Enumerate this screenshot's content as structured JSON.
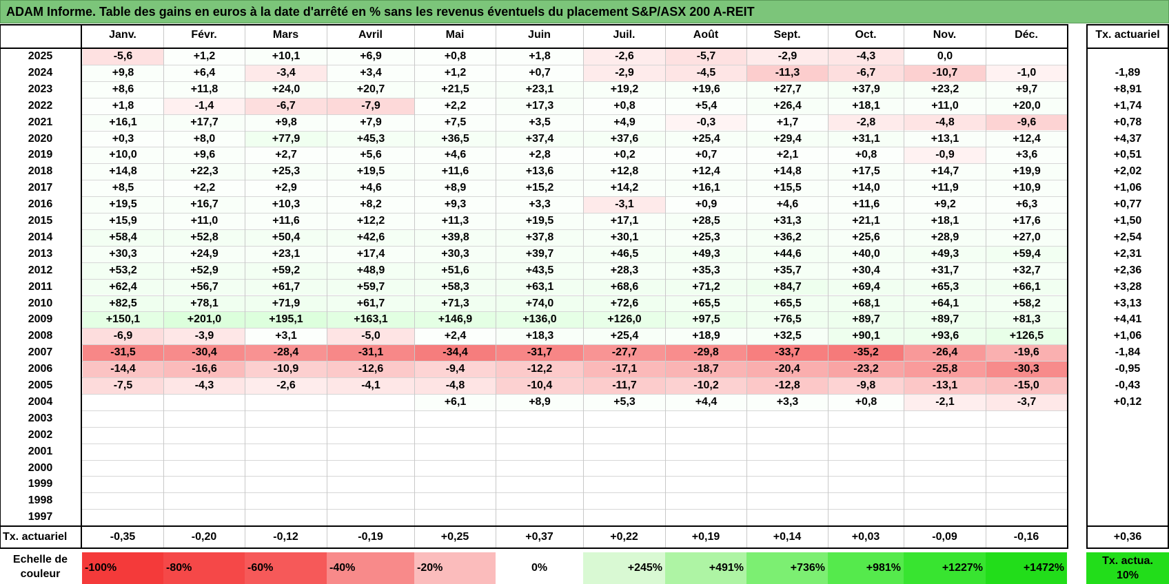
{
  "title": "ADAM Informe. Table des gains en euros à la date d'arrêté en % sans les revenus éventuels du placement S&P/ASX 200 A-REIT",
  "months": [
    "Janv.",
    "Févr.",
    "Mars",
    "Avril",
    "Mai",
    "Juin",
    "Juil.",
    "Août",
    "Sept.",
    "Oct.",
    "Nov.",
    "Déc."
  ],
  "annual_header": "Tx. actuariel",
  "rows": [
    {
      "year": "2025",
      "values": [
        "-5,6",
        "+1,2",
        "+10,1",
        "+6,9",
        "+0,8",
        "+1,8",
        "-2,6",
        "-5,7",
        "-2,9",
        "-4,3",
        "0,0",
        ""
      ],
      "annual": ""
    },
    {
      "year": "2024",
      "values": [
        "+9,8",
        "+6,4",
        "-3,4",
        "+3,4",
        "+1,2",
        "+0,7",
        "-2,9",
        "-4,5",
        "-11,3",
        "-6,7",
        "-10,7",
        "-1,0"
      ],
      "annual": "-1,89"
    },
    {
      "year": "2023",
      "values": [
        "+8,6",
        "+11,8",
        "+24,0",
        "+20,7",
        "+21,5",
        "+23,1",
        "+19,2",
        "+19,6",
        "+27,7",
        "+37,9",
        "+23,2",
        "+9,7"
      ],
      "annual": "+8,91"
    },
    {
      "year": "2022",
      "values": [
        "+1,8",
        "-1,4",
        "-6,7",
        "-7,9",
        "+2,2",
        "+17,3",
        "+0,8",
        "+5,4",
        "+26,4",
        "+18,1",
        "+11,0",
        "+20,0"
      ],
      "annual": "+1,74"
    },
    {
      "year": "2021",
      "values": [
        "+16,1",
        "+17,7",
        "+9,8",
        "+7,9",
        "+7,5",
        "+3,5",
        "+4,9",
        "-0,3",
        "+1,7",
        "-2,8",
        "-4,8",
        "-9,6"
      ],
      "annual": "+0,78"
    },
    {
      "year": "2020",
      "values": [
        "+0,3",
        "+8,0",
        "+77,9",
        "+45,3",
        "+36,5",
        "+37,4",
        "+37,6",
        "+25,4",
        "+29,4",
        "+31,1",
        "+13,1",
        "+12,4"
      ],
      "annual": "+4,37"
    },
    {
      "year": "2019",
      "values": [
        "+10,0",
        "+9,6",
        "+2,7",
        "+5,6",
        "+4,6",
        "+2,8",
        "+0,2",
        "+0,7",
        "+2,1",
        "+0,8",
        "-0,9",
        "+3,6"
      ],
      "annual": "+0,51"
    },
    {
      "year": "2018",
      "values": [
        "+14,8",
        "+22,3",
        "+25,3",
        "+19,5",
        "+11,6",
        "+13,6",
        "+12,8",
        "+12,4",
        "+14,8",
        "+17,5",
        "+14,7",
        "+19,9"
      ],
      "annual": "+2,02"
    },
    {
      "year": "2017",
      "values": [
        "+8,5",
        "+2,2",
        "+2,9",
        "+4,6",
        "+8,9",
        "+15,2",
        "+14,2",
        "+16,1",
        "+15,5",
        "+14,0",
        "+11,9",
        "+10,9"
      ],
      "annual": "+1,06"
    },
    {
      "year": "2016",
      "values": [
        "+19,5",
        "+16,7",
        "+10,3",
        "+8,2",
        "+9,3",
        "+3,3",
        "-3,1",
        "+0,9",
        "+4,6",
        "+11,6",
        "+9,2",
        "+6,3"
      ],
      "annual": "+0,77"
    },
    {
      "year": "2015",
      "values": [
        "+15,9",
        "+11,0",
        "+11,6",
        "+12,2",
        "+11,3",
        "+19,5",
        "+17,1",
        "+28,5",
        "+31,3",
        "+21,1",
        "+18,1",
        "+17,6"
      ],
      "annual": "+1,50"
    },
    {
      "year": "2014",
      "values": [
        "+58,4",
        "+52,8",
        "+50,4",
        "+42,6",
        "+39,8",
        "+37,8",
        "+30,1",
        "+25,3",
        "+36,2",
        "+25,6",
        "+28,9",
        "+27,0"
      ],
      "annual": "+2,54"
    },
    {
      "year": "2013",
      "values": [
        "+30,3",
        "+24,9",
        "+23,1",
        "+17,4",
        "+30,3",
        "+39,7",
        "+46,5",
        "+49,3",
        "+44,6",
        "+40,0",
        "+49,3",
        "+59,4"
      ],
      "annual": "+2,31"
    },
    {
      "year": "2012",
      "values": [
        "+53,2",
        "+52,9",
        "+59,2",
        "+48,9",
        "+51,6",
        "+43,5",
        "+28,3",
        "+35,3",
        "+35,7",
        "+30,4",
        "+31,7",
        "+32,7"
      ],
      "annual": "+2,36"
    },
    {
      "year": "2011",
      "values": [
        "+62,4",
        "+56,7",
        "+61,7",
        "+59,7",
        "+58,3",
        "+63,1",
        "+68,6",
        "+71,2",
        "+84,7",
        "+69,4",
        "+65,3",
        "+66,1"
      ],
      "annual": "+3,28"
    },
    {
      "year": "2010",
      "values": [
        "+82,5",
        "+78,1",
        "+71,9",
        "+61,7",
        "+71,3",
        "+74,0",
        "+72,6",
        "+65,5",
        "+65,5",
        "+68,1",
        "+64,1",
        "+58,2"
      ],
      "annual": "+3,13"
    },
    {
      "year": "2009",
      "values": [
        "+150,1",
        "+201,0",
        "+195,1",
        "+163,1",
        "+146,9",
        "+136,0",
        "+126,0",
        "+97,5",
        "+76,5",
        "+89,7",
        "+89,7",
        "+81,3"
      ],
      "annual": "+4,41"
    },
    {
      "year": "2008",
      "values": [
        "-6,9",
        "-3,9",
        "+3,1",
        "-5,0",
        "+2,4",
        "+18,3",
        "+25,4",
        "+18,9",
        "+32,5",
        "+90,1",
        "+93,6",
        "+126,5"
      ],
      "annual": "+1,06"
    },
    {
      "year": "2007",
      "values": [
        "-31,5",
        "-30,4",
        "-28,4",
        "-31,1",
        "-34,4",
        "-31,7",
        "-27,7",
        "-29,8",
        "-33,7",
        "-35,2",
        "-26,4",
        "-19,6"
      ],
      "annual": "-1,84"
    },
    {
      "year": "2006",
      "values": [
        "-14,4",
        "-16,6",
        "-10,9",
        "-12,6",
        "-9,4",
        "-12,2",
        "-17,1",
        "-18,7",
        "-20,4",
        "-23,2",
        "-25,8",
        "-30,3"
      ],
      "annual": "-0,95"
    },
    {
      "year": "2005",
      "values": [
        "-7,5",
        "-4,3",
        "-2,6",
        "-4,1",
        "-4,8",
        "-10,4",
        "-11,7",
        "-10,2",
        "-12,8",
        "-9,8",
        "-13,1",
        "-15,0"
      ],
      "annual": "-0,43"
    },
    {
      "year": "2004",
      "values": [
        "",
        "",
        "",
        "",
        "+6,1",
        "+8,9",
        "+5,3",
        "+4,4",
        "+3,3",
        "+0,8",
        "-2,1",
        "-3,7"
      ],
      "annual": "+0,12"
    },
    {
      "year": "2003",
      "values": [
        "",
        "",
        "",
        "",
        "",
        "",
        "",
        "",
        "",
        "",
        "",
        ""
      ],
      "annual": ""
    },
    {
      "year": "2002",
      "values": [
        "",
        "",
        "",
        "",
        "",
        "",
        "",
        "",
        "",
        "",
        "",
        ""
      ],
      "annual": ""
    },
    {
      "year": "2001",
      "values": [
        "",
        "",
        "",
        "",
        "",
        "",
        "",
        "",
        "",
        "",
        "",
        ""
      ],
      "annual": ""
    },
    {
      "year": "2000",
      "values": [
        "",
        "",
        "",
        "",
        "",
        "",
        "",
        "",
        "",
        "",
        "",
        ""
      ],
      "annual": ""
    },
    {
      "year": "1999",
      "values": [
        "",
        "",
        "",
        "",
        "",
        "",
        "",
        "",
        "",
        "",
        "",
        ""
      ],
      "annual": ""
    },
    {
      "year": "1998",
      "values": [
        "",
        "",
        "",
        "",
        "",
        "",
        "",
        "",
        "",
        "",
        "",
        ""
      ],
      "annual": ""
    },
    {
      "year": "1997",
      "values": [
        "",
        "",
        "",
        "",
        "",
        "",
        "",
        "",
        "",
        "",
        "",
        ""
      ],
      "annual": ""
    }
  ],
  "footer": {
    "label": "Tx. actuariel",
    "values": [
      "-0,35",
      "-0,20",
      "-0,12",
      "-0,19",
      "+0,25",
      "+0,37",
      "+0,22",
      "+0,19",
      "+0,14",
      "+0,03",
      "-0,09",
      "-0,16"
    ],
    "annual": "+0,36"
  },
  "scale": {
    "label": "Echelle de couleur",
    "items": [
      {
        "text": "-100%",
        "color": "#f43a3a",
        "align": "left"
      },
      {
        "text": "-80%",
        "color": "#f54848",
        "align": "left"
      },
      {
        "text": "-60%",
        "color": "#f65959",
        "align": "left"
      },
      {
        "text": "-40%",
        "color": "#f88a8a",
        "align": "left"
      },
      {
        "text": "-20%",
        "color": "#fbbcbc",
        "align": "left"
      },
      {
        "text": "0%",
        "color": "#ffffff",
        "align": "center"
      },
      {
        "text": "+245%",
        "color": "#d9f9d3",
        "align": "right"
      },
      {
        "text": "+491%",
        "color": "#aef4a4",
        "align": "right"
      },
      {
        "text": "+736%",
        "color": "#7cef72",
        "align": "right"
      },
      {
        "text": "+981%",
        "color": "#55ea4c",
        "align": "right"
      },
      {
        "text": "+1227%",
        "color": "#38e430",
        "align": "right"
      },
      {
        "text": "+1472%",
        "color": "#22dd1a",
        "align": "right"
      }
    ],
    "annual_label": "Tx. actua. 10%",
    "annual_color": "#22dd1a"
  },
  "colors": {
    "title_bg": "#7cc57a",
    "negative_max": "#f43a3a",
    "positive_max": "#22dd1a"
  }
}
